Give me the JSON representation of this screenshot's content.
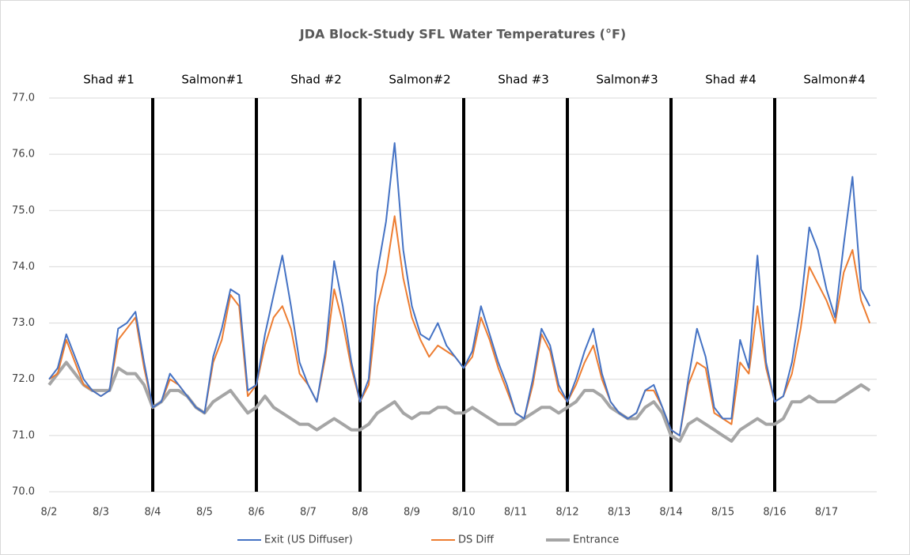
{
  "chart_data": {
    "type": "line",
    "title": "JDA Block-Study SFL Water Temperatures (°F)",
    "blocks": [
      "Shad #1",
      "Salmon#1",
      "Shad #2",
      "Salmon#2",
      "Shad #3",
      "Salmon#3",
      "Shad #4",
      "Salmon#4"
    ],
    "categories": [
      "8/2",
      null,
      null,
      null,
      null,
      null,
      "8/3",
      null,
      null,
      null,
      null,
      null,
      "8/4",
      null,
      null,
      null,
      null,
      null,
      "8/5",
      null,
      null,
      null,
      null,
      null,
      "8/6",
      null,
      null,
      null,
      null,
      null,
      "8/7",
      null,
      null,
      null,
      null,
      null,
      "8/8",
      null,
      null,
      null,
      null,
      null,
      "8/9",
      null,
      null,
      null,
      null,
      null,
      "8/10",
      null,
      null,
      null,
      null,
      null,
      "8/11",
      null,
      null,
      null,
      null,
      null,
      "8/12",
      null,
      null,
      null,
      null,
      null,
      "8/13",
      null,
      null,
      null,
      null,
      null,
      "8/14",
      null,
      null,
      null,
      null,
      null,
      "8/15",
      null,
      null,
      null,
      null,
      null,
      "8/16",
      null,
      null,
      null,
      null,
      null,
      "8/17",
      null,
      null,
      null,
      null,
      null
    ],
    "series": [
      {
        "name": "Exit (US Diffuser)",
        "color": "#4472c4",
        "values": [
          72.0,
          72.2,
          72.8,
          72.4,
          72.0,
          71.8,
          71.7,
          71.8,
          72.9,
          73.0,
          73.2,
          72.3,
          71.5,
          71.6,
          72.1,
          71.9,
          71.7,
          71.5,
          71.4,
          72.4,
          72.9,
          73.6,
          73.5,
          71.8,
          71.9,
          72.8,
          73.5,
          74.2,
          73.3,
          72.3,
          71.9,
          71.6,
          72.5,
          74.1,
          73.3,
          72.3,
          71.6,
          72.0,
          73.9,
          74.8,
          76.2,
          74.3,
          73.3,
          72.8,
          72.7,
          73.0,
          72.6,
          72.4,
          72.2,
          72.5,
          73.3,
          72.8,
          72.3,
          71.9,
          71.4,
          71.3,
          72.0,
          72.9,
          72.6,
          71.9,
          71.6,
          72.0,
          72.5,
          72.9,
          72.1,
          71.6,
          71.4,
          71.3,
          71.4,
          71.8,
          71.9,
          71.5,
          71.1,
          71.0,
          72.0,
          72.9,
          72.4,
          71.5,
          71.3,
          71.3,
          72.7,
          72.2,
          74.2,
          72.3,
          71.6,
          71.7,
          72.3,
          73.3,
          74.7,
          74.3,
          73.6,
          73.1,
          74.4,
          75.6,
          73.6,
          73.3
        ]
      },
      {
        "name": "DS Diff",
        "color": "#ed7d31",
        "values": [
          72.0,
          72.1,
          72.7,
          72.3,
          71.9,
          71.8,
          71.7,
          71.8,
          72.7,
          72.9,
          73.1,
          72.2,
          71.5,
          71.6,
          72.0,
          71.9,
          71.7,
          71.5,
          71.4,
          72.3,
          72.7,
          73.5,
          73.3,
          71.7,
          71.9,
          72.6,
          73.1,
          73.3,
          72.9,
          72.1,
          71.9,
          71.6,
          72.4,
          73.6,
          73.0,
          72.2,
          71.6,
          71.9,
          73.3,
          73.9,
          74.9,
          73.8,
          73.1,
          72.7,
          72.4,
          72.6,
          72.5,
          72.4,
          72.2,
          72.4,
          73.1,
          72.7,
          72.2,
          71.8,
          71.4,
          71.3,
          71.9,
          72.8,
          72.5,
          71.8,
          71.6,
          71.9,
          72.3,
          72.6,
          72.0,
          71.6,
          71.4,
          71.3,
          71.4,
          71.8,
          71.8,
          71.5,
          71.1,
          71.0,
          71.9,
          72.3,
          72.2,
          71.4,
          71.3,
          71.2,
          72.3,
          72.1,
          73.3,
          72.2,
          71.6,
          71.7,
          72.1,
          72.9,
          74.0,
          73.7,
          73.4,
          73.0,
          73.9,
          74.3,
          73.4,
          73.0
        ]
      },
      {
        "name": "Entrance",
        "color": "#a5a5a5",
        "values": [
          71.9,
          72.1,
          72.3,
          72.1,
          71.9,
          71.8,
          71.8,
          71.8,
          72.2,
          72.1,
          72.1,
          71.9,
          71.5,
          71.6,
          71.8,
          71.8,
          71.7,
          71.5,
          71.4,
          71.6,
          71.7,
          71.8,
          71.6,
          71.4,
          71.5,
          71.7,
          71.5,
          71.4,
          71.3,
          71.2,
          71.2,
          71.1,
          71.2,
          71.3,
          71.2,
          71.1,
          71.1,
          71.2,
          71.4,
          71.5,
          71.6,
          71.4,
          71.3,
          71.4,
          71.4,
          71.5,
          71.5,
          71.4,
          71.4,
          71.5,
          71.4,
          71.3,
          71.2,
          71.2,
          71.2,
          71.3,
          71.4,
          71.5,
          71.5,
          71.4,
          71.5,
          71.6,
          71.8,
          71.8,
          71.7,
          71.5,
          71.4,
          71.3,
          71.3,
          71.5,
          71.6,
          71.4,
          71.0,
          70.9,
          71.2,
          71.3,
          71.2,
          71.1,
          71.0,
          70.9,
          71.1,
          71.2,
          71.3,
          71.2,
          71.2,
          71.3,
          71.6,
          71.6,
          71.7,
          71.6,
          71.6,
          71.6,
          71.7,
          71.8,
          71.9,
          71.8
        ]
      }
    ],
    "ylim": [
      70,
      77
    ],
    "yticks": [
      {
        "value": 70,
        "label": "70.0"
      },
      {
        "value": 71,
        "label": "71.0"
      },
      {
        "value": 72,
        "label": "72.0"
      },
      {
        "value": 73,
        "label": "73.0"
      },
      {
        "value": 74,
        "label": "74.0"
      },
      {
        "value": 75,
        "label": "75.0"
      },
      {
        "value": 76,
        "label": "76.0"
      },
      {
        "value": 77,
        "label": "77.0"
      }
    ],
    "grid": true
  }
}
